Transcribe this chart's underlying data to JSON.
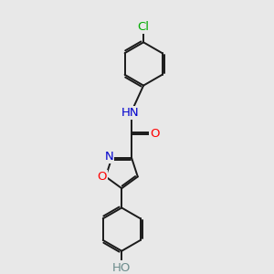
{
  "background_color": "#e8e8e8",
  "bond_color": "#1a1a1a",
  "atom_colors": {
    "N": "#0000cd",
    "O": "#ff0000",
    "Cl": "#00aa00",
    "H_color": "#6c8c8c",
    "C": "#1a1a1a"
  },
  "bond_width": 1.4,
  "font_size": 9.5,
  "xlim": [
    -3.5,
    3.5
  ],
  "ylim": [
    -5.5,
    6.5
  ]
}
